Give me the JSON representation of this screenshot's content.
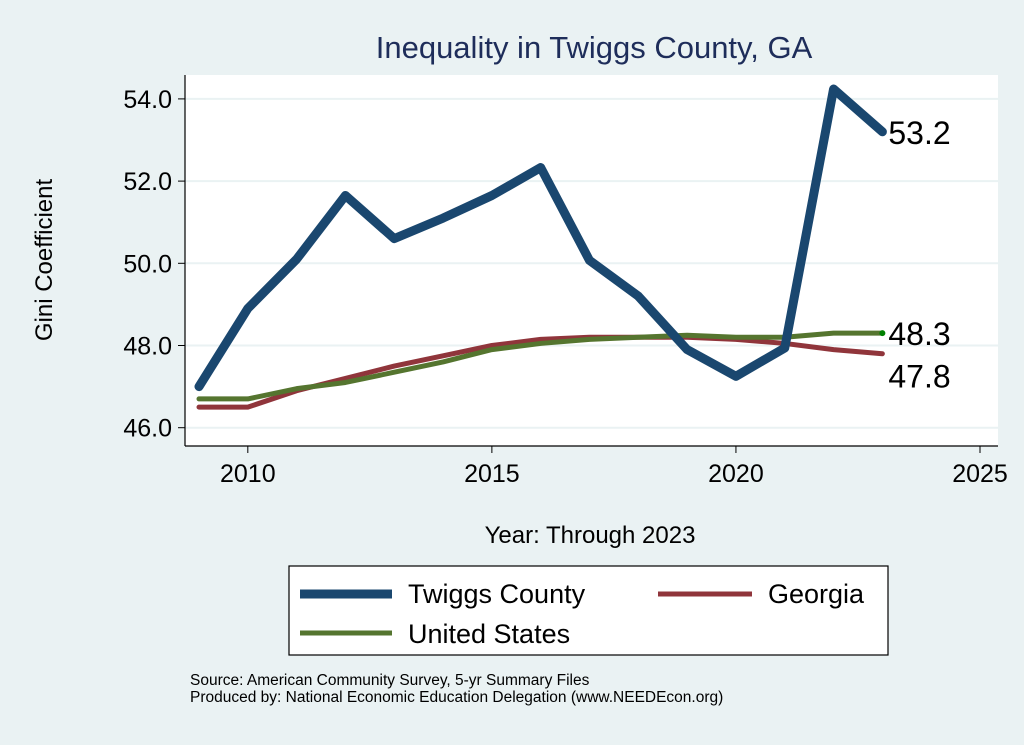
{
  "chart_data": {
    "type": "line",
    "title": "Inequality in Twiggs County, GA",
    "xlabel": "Year: Through 2023",
    "ylabel": "Gini Coefficient",
    "xlim": [
      2008.8,
      2025.4
    ],
    "ylim": [
      45.5,
      54.6
    ],
    "xticks": [
      2010,
      2015,
      2020,
      2025
    ],
    "yticks": [
      46.0,
      48.0,
      50.0,
      52.0,
      54.0
    ],
    "ytick_labels": [
      "46.0",
      "48.0",
      "50.0",
      "52.0",
      "54.0"
    ],
    "grid": true,
    "x": [
      2009,
      2010,
      2011,
      2012,
      2013,
      2014,
      2015,
      2016,
      2017,
      2018,
      2019,
      2020,
      2021,
      2022,
      2023
    ],
    "series": [
      {
        "name": "Twiggs County",
        "color": "#1a476f",
        "values": [
          47.0,
          48.9,
          50.1,
          51.65,
          50.6,
          51.1,
          51.65,
          52.33,
          50.07,
          49.2,
          47.9,
          47.25,
          47.94,
          54.24,
          53.2
        ],
        "end_label": "53.2"
      },
      {
        "name": "Georgia",
        "color": "#90353b",
        "values": [
          46.5,
          46.5,
          46.9,
          47.2,
          47.5,
          47.75,
          48.0,
          48.15,
          48.2,
          48.2,
          48.2,
          48.15,
          48.05,
          47.9,
          47.8
        ],
        "end_label": "47.8"
      },
      {
        "name": "United States",
        "color": "#55752f",
        "values": [
          46.7,
          46.7,
          46.95,
          47.1,
          47.35,
          47.6,
          47.9,
          48.05,
          48.15,
          48.2,
          48.25,
          48.2,
          48.2,
          48.3,
          48.3
        ],
        "end_label": "48.3"
      }
    ],
    "legend_placement": "bottom"
  },
  "notes": {
    "source": "Source: American Community Survey, 5-yr Summary Files",
    "producer": "Produced by: National Economic Education Delegation (www.NEEDEcon.org)"
  }
}
